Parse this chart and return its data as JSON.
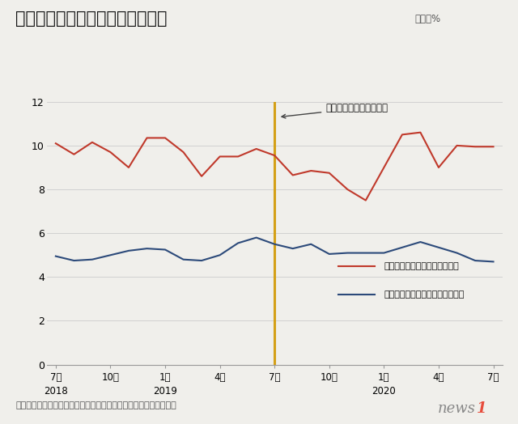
{
  "title": "韓国の輸出入で日本が占める割合",
  "unit_label": "単位：%",
  "source_label": "資料：オックスフォード・エコノミクス、ヘイバー・アナリティク",
  "annotation_text": "日本による対韓輸出規制",
  "legend_import": "韓国輸入額のうち、日本の割合",
  "legend_export": "韓国の輸出額のうち、日本の割合",
  "vline_x": 12,
  "background_color": "#f0efeb",
  "red_color": "#c0392b",
  "blue_color": "#2c4a7a",
  "vline_color": "#d4a017",
  "x_tick_positions": [
    0,
    3,
    6,
    9,
    12,
    15,
    18,
    21,
    24
  ],
  "red_data": [
    10.1,
    9.6,
    10.15,
    9.7,
    9.0,
    10.35,
    10.35,
    9.7,
    8.6,
    9.5,
    9.5,
    9.85,
    9.55,
    8.65,
    8.85,
    8.75,
    8.0,
    7.5,
    9.0,
    10.5,
    10.6,
    9.0,
    10.0,
    9.95,
    9.95
  ],
  "blue_data": [
    4.95,
    4.75,
    4.8,
    5.0,
    5.2,
    5.3,
    5.25,
    4.8,
    4.75,
    5.0,
    5.55,
    5.8,
    5.5,
    5.3,
    5.5,
    5.05,
    5.1,
    5.1,
    5.1,
    5.35,
    5.6,
    5.35,
    5.1,
    4.75,
    4.7
  ],
  "ylim": [
    0,
    12
  ],
  "yticks": [
    0,
    2,
    4,
    6,
    8,
    10,
    12
  ],
  "news1_color": "#888888",
  "news1_red": "#e74c3c"
}
